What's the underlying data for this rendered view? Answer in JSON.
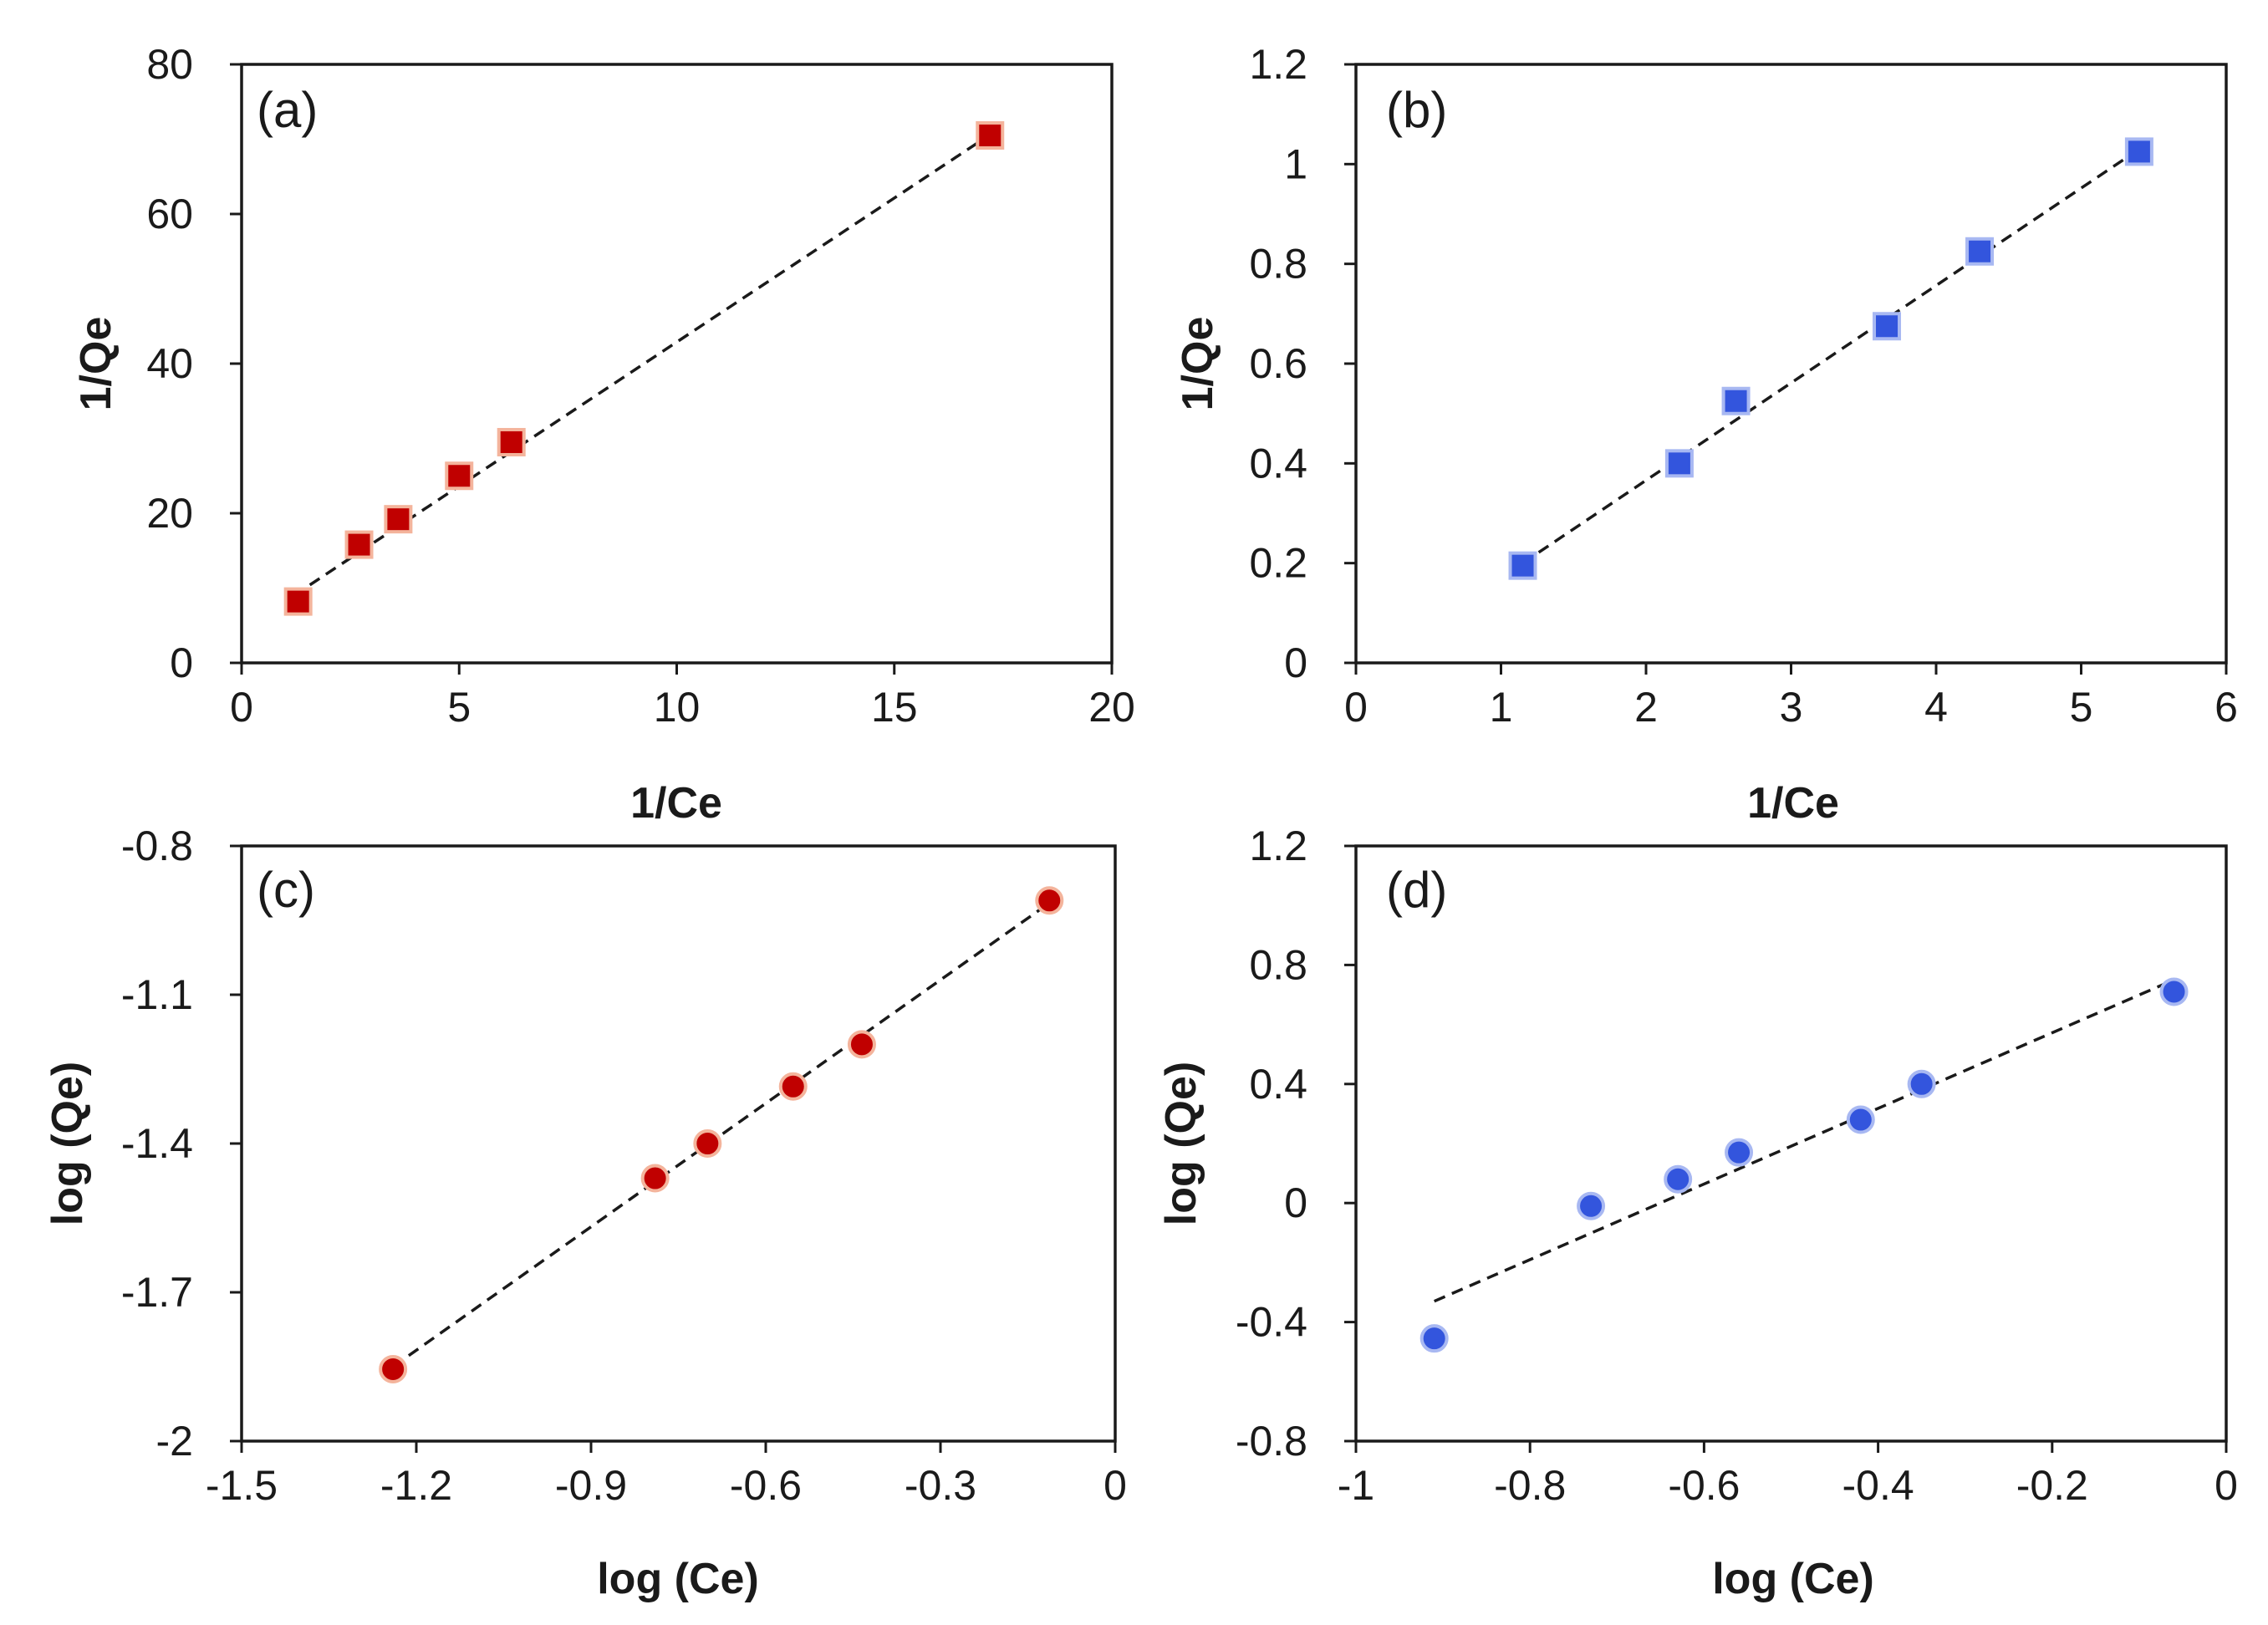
{
  "chart_data": [
    {
      "id": "a",
      "type": "scatter",
      "panel_label": "(a)",
      "xlabel": "1/Ce",
      "ylabel": "1/Qe",
      "xlim": [
        0,
        20
      ],
      "ylim": [
        0,
        80
      ],
      "xticks": [
        0,
        5,
        10,
        15,
        20
      ],
      "yticks": [
        0,
        20,
        40,
        60,
        80
      ],
      "xtick_labels": [
        "0",
        "5",
        "10",
        "15",
        "20"
      ],
      "ytick_labels": [
        "0",
        "20",
        "40",
        "60",
        "80"
      ],
      "marker": "square",
      "marker_color": "#c00000",
      "marker_edge": "#f4b49c",
      "x": [
        1.3,
        2.7,
        3.6,
        5.0,
        6.2,
        17.2
      ],
      "y": [
        8.2,
        15.8,
        19.2,
        25.0,
        29.5,
        70.5
      ],
      "fit": {
        "x": [
          1.2,
          17.2
        ],
        "y": [
          9.0,
          70.6
        ]
      }
    },
    {
      "id": "b",
      "type": "scatter",
      "panel_label": "(b)",
      "xlabel": "1/Ce",
      "ylabel": "1/Qe",
      "xlim": [
        0,
        6
      ],
      "ylim": [
        0,
        1.2
      ],
      "xticks": [
        0,
        1,
        2,
        3,
        4,
        5,
        6
      ],
      "yticks": [
        0,
        0.2,
        0.4,
        0.6,
        0.8,
        1,
        1.2
      ],
      "xtick_labels": [
        "0",
        "1",
        "2",
        "3",
        "4",
        "5",
        "6"
      ],
      "ytick_labels": [
        "0",
        "0.2",
        "0.4",
        "0.6",
        "0.8",
        "1",
        "1.2"
      ],
      "marker": "square",
      "marker_color": "#3355dd",
      "marker_edge": "#a8b8f2",
      "x": [
        1.15,
        2.23,
        2.62,
        3.66,
        4.3,
        5.4
      ],
      "y": [
        0.195,
        0.4,
        0.525,
        0.675,
        0.825,
        1.025
      ],
      "fit": {
        "x": [
          1.15,
          5.4
        ],
        "y": [
          0.2,
          1.03
        ]
      }
    },
    {
      "id": "c",
      "type": "scatter",
      "panel_label": "(c)",
      "xlabel": "log (Ce)",
      "ylabel": "log (Qe)",
      "xlim": [
        -1.5,
        0
      ],
      "ylim": [
        -2,
        -0.8
      ],
      "xticks": [
        -1.5,
        -1.2,
        -0.9,
        -0.6,
        -0.3,
        0
      ],
      "yticks": [
        -2,
        -1.7,
        -1.4,
        -1.1,
        -0.8
      ],
      "xtick_labels": [
        "-1.5",
        "-1.2",
        "-0.9",
        "-0.6",
        "-0.3",
        "0"
      ],
      "ytick_labels": [
        "-2",
        "-1.7",
        "-1.4",
        "-1.1",
        "-0.8"
      ],
      "marker": "circle",
      "marker_color": "#c00000",
      "marker_edge": "#f4b49c",
      "x": [
        -1.24,
        -0.79,
        -0.7,
        -0.553,
        -0.435,
        -0.113
      ],
      "y": [
        -1.855,
        -1.47,
        -1.4,
        -1.285,
        -1.2,
        -0.91
      ],
      "fit": {
        "x": [
          -1.24,
          -0.113
        ],
        "y": [
          -1.85,
          -0.915
        ]
      }
    },
    {
      "id": "d",
      "type": "scatter",
      "panel_label": "(d)",
      "xlabel": "log (Ce)",
      "ylabel": "log (Qe)",
      "xlim": [
        -1,
        0
      ],
      "ylim": [
        -0.8,
        1.2
      ],
      "xticks": [
        -1,
        -0.8,
        -0.6,
        -0.4,
        -0.2,
        0
      ],
      "yticks": [
        -0.8,
        -0.4,
        0,
        0.4,
        0.8,
        1.2
      ],
      "xtick_labels": [
        "-1",
        "-0.8",
        "-0.6",
        "-0.4",
        "-0.2",
        "0"
      ],
      "ytick_labels": [
        "-0.8",
        "-0.4",
        "0",
        "0.4",
        "0.8",
        "1.2"
      ],
      "marker": "circle",
      "marker_color": "#3355dd",
      "marker_edge": "#a8b8f2",
      "x": [
        -0.91,
        -0.73,
        -0.63,
        -0.56,
        -0.42,
        -0.35,
        -0.06
      ],
      "y": [
        -0.455,
        -0.01,
        0.08,
        0.17,
        0.28,
        0.4,
        0.71
      ],
      "fit": {
        "x": [
          -0.91,
          -0.06
        ],
        "y": [
          -0.33,
          0.75
        ]
      }
    }
  ]
}
